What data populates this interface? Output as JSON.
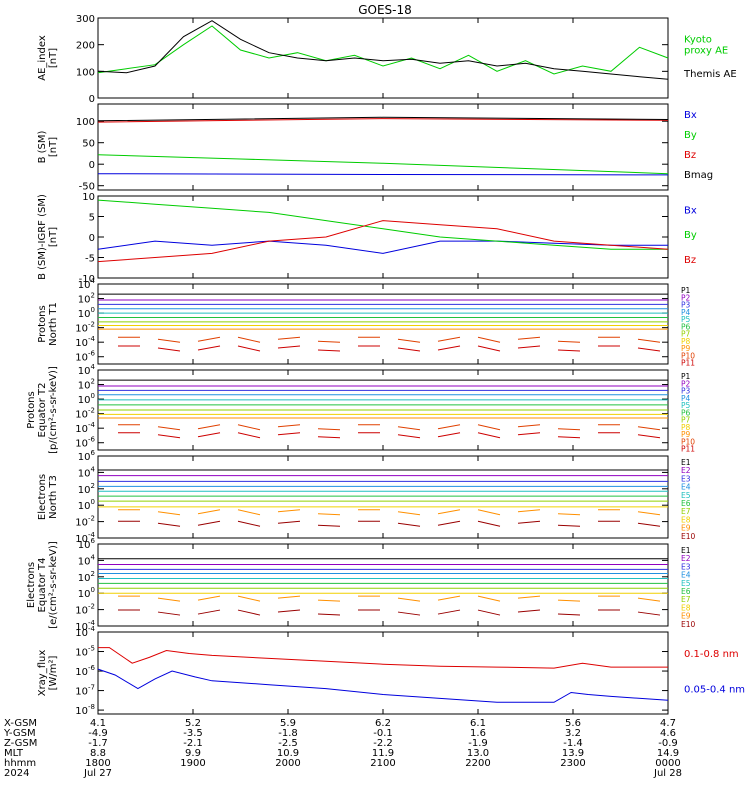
{
  "title": "GOES-18",
  "colors": {
    "black": "#000000",
    "green": "#00cc00",
    "red": "#dd0000",
    "blue": "#0000dd",
    "darkred": "#990000"
  },
  "chart_data": [
    {
      "type": "line",
      "id": "ae",
      "ylabel": "AE_index\n[nT]",
      "ylim": [
        0,
        300
      ],
      "yticks": [
        "0",
        "100",
        "200",
        "300"
      ],
      "series": [
        {
          "name": "Kyoto\nproxy AE",
          "color": "#00cc00",
          "x": [
            0,
            0.05,
            0.1,
            0.15,
            0.2,
            0.25,
            0.3,
            0.35,
            0.4,
            0.45,
            0.5,
            0.55,
            0.6,
            0.65,
            0.7,
            0.75,
            0.8,
            0.85,
            0.9,
            0.95,
            1
          ],
          "values": [
            95,
            110,
            125,
            200,
            270,
            180,
            150,
            170,
            140,
            160,
            120,
            150,
            110,
            160,
            100,
            140,
            90,
            120,
            100,
            190,
            150
          ]
        },
        {
          "name": "Themis AE",
          "color": "#000000",
          "x": [
            0,
            0.05,
            0.1,
            0.15,
            0.2,
            0.25,
            0.3,
            0.35,
            0.4,
            0.45,
            0.5,
            0.55,
            0.6,
            0.65,
            0.7,
            0.75,
            0.8,
            0.85,
            0.9,
            0.95,
            1
          ],
          "values": [
            100,
            95,
            120,
            230,
            290,
            220,
            170,
            150,
            140,
            150,
            140,
            145,
            130,
            140,
            120,
            130,
            110,
            100,
            90,
            80,
            70
          ]
        }
      ]
    },
    {
      "type": "line",
      "id": "bsm",
      "ylabel": "B (SM)\n[nT]",
      "ylim": [
        -60,
        140
      ],
      "yticks": [
        "-50",
        "0",
        "50",
        "100"
      ],
      "series": [
        {
          "name": "Bx",
          "color": "#0000dd",
          "x": [
            0,
            0.5,
            1
          ],
          "values": [
            -22,
            -24,
            -25
          ]
        },
        {
          "name": "By",
          "color": "#00cc00",
          "x": [
            0,
            0.25,
            0.5,
            0.75,
            1
          ],
          "values": [
            22,
            12,
            2,
            -10,
            -22
          ]
        },
        {
          "name": "Bz",
          "color": "#dd0000",
          "x": [
            0,
            0.5,
            1
          ],
          "values": [
            98,
            106,
            102
          ]
        },
        {
          "name": "Bmag",
          "color": "#000000",
          "x": [
            0,
            0.5,
            1
          ],
          "values": [
            101,
            109,
            104
          ]
        }
      ]
    },
    {
      "type": "line",
      "id": "bres",
      "ylabel": "B (SM)-IGRF (SM)\n[nT]",
      "ylim": [
        -10,
        10
      ],
      "yticks": [
        "-10",
        "-5",
        "0",
        "5",
        "10"
      ],
      "series": [
        {
          "name": "Bx",
          "color": "#0000dd",
          "x": [
            0,
            0.1,
            0.2,
            0.3,
            0.4,
            0.5,
            0.6,
            0.7,
            0.8,
            0.9,
            1
          ],
          "values": [
            -3,
            -1,
            -2,
            -1,
            -2,
            -4,
            -1,
            -1,
            -1.5,
            -2,
            -2
          ]
        },
        {
          "name": "By",
          "color": "#00cc00",
          "x": [
            0,
            0.1,
            0.2,
            0.3,
            0.4,
            0.5,
            0.6,
            0.7,
            0.8,
            0.9,
            1
          ],
          "values": [
            9,
            8,
            7,
            6,
            4,
            2,
            0,
            -1,
            -2,
            -3,
            -3
          ]
        },
        {
          "name": "Bz",
          "color": "#dd0000",
          "x": [
            0,
            0.1,
            0.2,
            0.3,
            0.4,
            0.5,
            0.6,
            0.7,
            0.8,
            0.9,
            1
          ],
          "values": [
            -6,
            -5,
            -4,
            -1,
            0,
            4,
            3,
            2,
            -1,
            -2,
            -3
          ]
        }
      ]
    },
    {
      "type": "line",
      "id": "pnt",
      "ylabel": "Protons\nNorth T1",
      "log": true,
      "ylim_exp": [
        -7,
        4
      ],
      "ytick_exps": [
        -6,
        -4,
        -2,
        0,
        2,
        4
      ],
      "channels": [
        "P1",
        "P2",
        "P3",
        "P4",
        "P5",
        "P6",
        "P7",
        "P8",
        "P9",
        "P10",
        "P11"
      ],
      "channel_colors": [
        "#000000",
        "#9000c0",
        "#3030e0",
        "#2090e0",
        "#20c0c0",
        "#20c040",
        "#90d000",
        "#f0d000",
        "#ff9000",
        "#e04000",
        "#cc0000"
      ],
      "exponents": [
        2.6,
        1.8,
        1.2,
        0.6,
        0,
        -0.6,
        -1.2,
        -1.7,
        -2.2,
        -3.6,
        -4.8
      ]
    },
    {
      "type": "line",
      "id": "pet",
      "ylabel": "Protons\nEquator T2\n[p/(cm²-s-sr-keV)]",
      "log": true,
      "ylim_exp": [
        -7,
        4
      ],
      "ytick_exps": [
        -6,
        -4,
        -2,
        0,
        2,
        4
      ],
      "channels": [
        "P1",
        "P2",
        "P3",
        "P4",
        "P5",
        "P6",
        "P7",
        "P8",
        "P9",
        "P10",
        "P11"
      ],
      "channel_colors": [
        "#000000",
        "#9000c0",
        "#3030e0",
        "#2090e0",
        "#20c0c0",
        "#20c040",
        "#90d000",
        "#f0d000",
        "#ff9000",
        "#e04000",
        "#cc0000"
      ],
      "exponents": [
        2.6,
        1.8,
        1.2,
        0.6,
        -0.1,
        -0.8,
        -1.5,
        -2.1,
        -2.6,
        -3.8,
        -4.9
      ]
    },
    {
      "type": "line",
      "id": "ent",
      "ylabel": "Electrons\nNorth T3",
      "log": true,
      "ylim_exp": [
        -4,
        6
      ],
      "ytick_exps": [
        -4,
        -2,
        0,
        2,
        4,
        6
      ],
      "channels": [
        "E1",
        "E2",
        "E3",
        "E4",
        "E5",
        "E6",
        "E7",
        "E8",
        "E9",
        "E10"
      ],
      "channel_colors": [
        "#000000",
        "#9000c0",
        "#3030e0",
        "#2090e0",
        "#20c0c0",
        "#20c040",
        "#90d000",
        "#f0d000",
        "#ff9000",
        "#990000"
      ],
      "exponents": [
        4.3,
        3.6,
        2.9,
        2.3,
        1.7,
        1.1,
        0.5,
        -0.2,
        -0.8,
        -2.2
      ]
    },
    {
      "type": "line",
      "id": "eet",
      "ylabel": "Electrons\nEquator T4\n[e/(cm²-s-sr-keV)]",
      "log": true,
      "ylim_exp": [
        -4,
        6
      ],
      "ytick_exps": [
        -4,
        -2,
        0,
        2,
        4,
        6
      ],
      "channels": [
        "E1",
        "E2",
        "E3",
        "E4",
        "E5",
        "E6",
        "E7",
        "E8",
        "E9",
        "E10"
      ],
      "channel_colors": [
        "#000000",
        "#9000c0",
        "#3030e0",
        "#2090e0",
        "#20c0c0",
        "#20c040",
        "#90d000",
        "#f0d000",
        "#ff9000",
        "#990000"
      ],
      "exponents": [
        4.2,
        3.5,
        2.9,
        2.4,
        1.8,
        1.2,
        0.6,
        0.0,
        -0.6,
        -2.3
      ]
    },
    {
      "type": "line",
      "id": "xray",
      "ylabel": "Xray_flux\n[W/m²]",
      "log": true,
      "ylim_exp": [
        -8.2,
        -4
      ],
      "ytick_exps": [
        -8,
        -7,
        -6,
        -5,
        -4
      ],
      "series": [
        {
          "name": "0.1-0.8 nm",
          "color": "#dd0000",
          "x": [
            0,
            0.02,
            0.06,
            0.09,
            0.12,
            0.16,
            0.2,
            0.3,
            0.4,
            0.5,
            0.6,
            0.7,
            0.8,
            0.85,
            0.9,
            1
          ],
          "exp": [
            -4.8,
            -4.8,
            -5.6,
            -5.3,
            -4.95,
            -5.1,
            -5.2,
            -5.35,
            -5.5,
            -5.65,
            -5.75,
            -5.8,
            -5.85,
            -5.6,
            -5.8,
            -5.8
          ]
        },
        {
          "name": "0.05-0.4 nm",
          "color": "#0000dd",
          "x": [
            0,
            0.03,
            0.07,
            0.1,
            0.13,
            0.17,
            0.2,
            0.3,
            0.4,
            0.5,
            0.6,
            0.7,
            0.8,
            0.83,
            0.86,
            0.9,
            1
          ],
          "exp": [
            -5.9,
            -6.2,
            -6.9,
            -6.4,
            -6.0,
            -6.3,
            -6.5,
            -6.7,
            -6.9,
            -7.2,
            -7.4,
            -7.6,
            -7.6,
            -7.1,
            -7.2,
            -7.3,
            -7.5
          ]
        }
      ]
    }
  ],
  "xaxis": {
    "row_labels": [
      "X-GSM",
      "Y-GSM",
      "Z-GSM",
      "MLT",
      "hhmm",
      "2024"
    ],
    "columns": [
      {
        "vals": [
          "4.1",
          "-4.9",
          "-1.7",
          "8.8",
          "1800",
          "Jul 27"
        ]
      },
      {
        "vals": [
          "5.2",
          "-3.5",
          "-2.1",
          "9.9",
          "1900",
          ""
        ]
      },
      {
        "vals": [
          "5.9",
          "-1.8",
          "-2.5",
          "10.9",
          "2000",
          ""
        ]
      },
      {
        "vals": [
          "6.2",
          "-0.1",
          "-2.2",
          "11.9",
          "2100",
          ""
        ]
      },
      {
        "vals": [
          "6.1",
          "1.6",
          "-1.9",
          "13.0",
          "2200",
          ""
        ]
      },
      {
        "vals": [
          "5.6",
          "3.2",
          "-1.4",
          "13.9",
          "2300",
          ""
        ]
      },
      {
        "vals": [
          "4.7",
          "4.6",
          "-0.9",
          "14.9",
          "0000",
          "Jul 28"
        ]
      }
    ]
  }
}
